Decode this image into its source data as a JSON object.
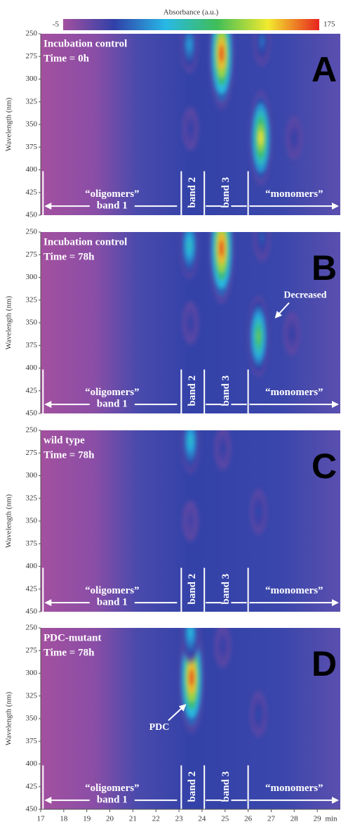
{
  "chart_data": [
    {
      "type": "heatmap",
      "letter": "A",
      "title": "Incubation control",
      "subtitle": "Time = 0h",
      "ylabel": "Wavelength (nm)",
      "colorbar": {
        "label": "Absorbance (a.u.)",
        "range": [
          -5,
          175
        ],
        "colormap": [
          "#a3509f",
          "#3040a8",
          "#28b8e6",
          "#40be58",
          "#f2ea2e",
          "#e8231f"
        ]
      },
      "peaks": {
        "x": [
          23.45,
          24.85,
          26.55,
          26.6,
          23.5,
          28
        ],
        "y": [
          262,
          272,
          365,
          258,
          355,
          365
        ],
        "values": [
          60,
          175,
          140,
          45,
          30,
          30
        ]
      },
      "bands": {
        "labels": [
          "“oligomers”",
          "band 1",
          "band 2",
          "band 3",
          "“monomers”"
        ],
        "boundaries": [
          17.1,
          23.1,
          24.1,
          26.0
        ]
      },
      "xlim": [
        17,
        30
      ],
      "ylim": [
        250,
        450
      ],
      "y_reversed": true,
      "yticks": [
        250,
        275,
        300,
        325,
        350,
        375,
        400,
        425,
        450
      ]
    },
    {
      "type": "heatmap",
      "letter": "B",
      "title": "Incubation control",
      "subtitle": "Time = 78h",
      "ylabel": "Wavelength (nm)",
      "callout": "Decreased",
      "peaks": {
        "x": [
          23.45,
          24.85,
          26.45,
          26.6,
          23.5,
          27.9
        ],
        "y": [
          265,
          268,
          365,
          256,
          350,
          362
        ],
        "values": [
          80,
          175,
          110,
          40,
          30,
          30
        ]
      },
      "bands": {
        "labels": [
          "“oligomers”",
          "band 1",
          "band 2",
          "band 3",
          "“monomers”"
        ],
        "boundaries": [
          17.1,
          23.1,
          24.1,
          26.0
        ]
      },
      "xlim": [
        17,
        30
      ],
      "ylim": [
        250,
        450
      ],
      "y_reversed": true,
      "yticks": [
        250,
        275,
        300,
        325,
        350,
        375,
        400,
        425,
        450
      ]
    },
    {
      "type": "heatmap",
      "letter": "C",
      "title": "wild type",
      "subtitle": "Time = 78h",
      "ylabel": "Wavelength (nm)",
      "peaks": {
        "x": [
          23.5,
          24.9,
          26.45,
          23.5
        ],
        "y": [
          262,
          270,
          340,
          350
        ],
        "values": [
          75,
          30,
          35,
          25
        ]
      },
      "bands": {
        "labels": [
          "“oligomers”",
          "band 1",
          "band 2",
          "band 3",
          "“monomers”"
        ],
        "boundaries": [
          17.1,
          23.1,
          24.1,
          26.0
        ]
      },
      "xlim": [
        17,
        30
      ],
      "ylim": [
        250,
        450
      ],
      "y_reversed": true,
      "yticks": [
        250,
        275,
        300,
        325,
        350,
        375,
        400,
        425,
        450
      ]
    },
    {
      "type": "heatmap",
      "letter": "D",
      "title": "PDC-mutant",
      "subtitle": "Time = 78h",
      "ylabel": "Wavelength (nm)",
      "callout": "PDC",
      "peaks": {
        "x": [
          23.55,
          23.5,
          24.9,
          26.45
        ],
        "y": [
          305,
          255,
          270,
          345
        ],
        "values": [
          175,
          70,
          30,
          35
        ]
      },
      "bands": {
        "labels": [
          "“oligomers”",
          "band 1",
          "band 2",
          "band 3",
          "“monomers”"
        ],
        "boundaries": [
          17.1,
          23.1,
          24.1,
          26.0
        ]
      },
      "xlim": [
        17,
        30
      ],
      "ylim": [
        250,
        450
      ],
      "y_reversed": true,
      "yticks": [
        250,
        275,
        300,
        325,
        350,
        375,
        400,
        425,
        450
      ],
      "xticks": [
        17,
        18,
        19,
        20,
        21,
        22,
        23,
        24,
        25,
        26,
        27,
        28,
        29
      ],
      "xlabel": "min"
    }
  ]
}
